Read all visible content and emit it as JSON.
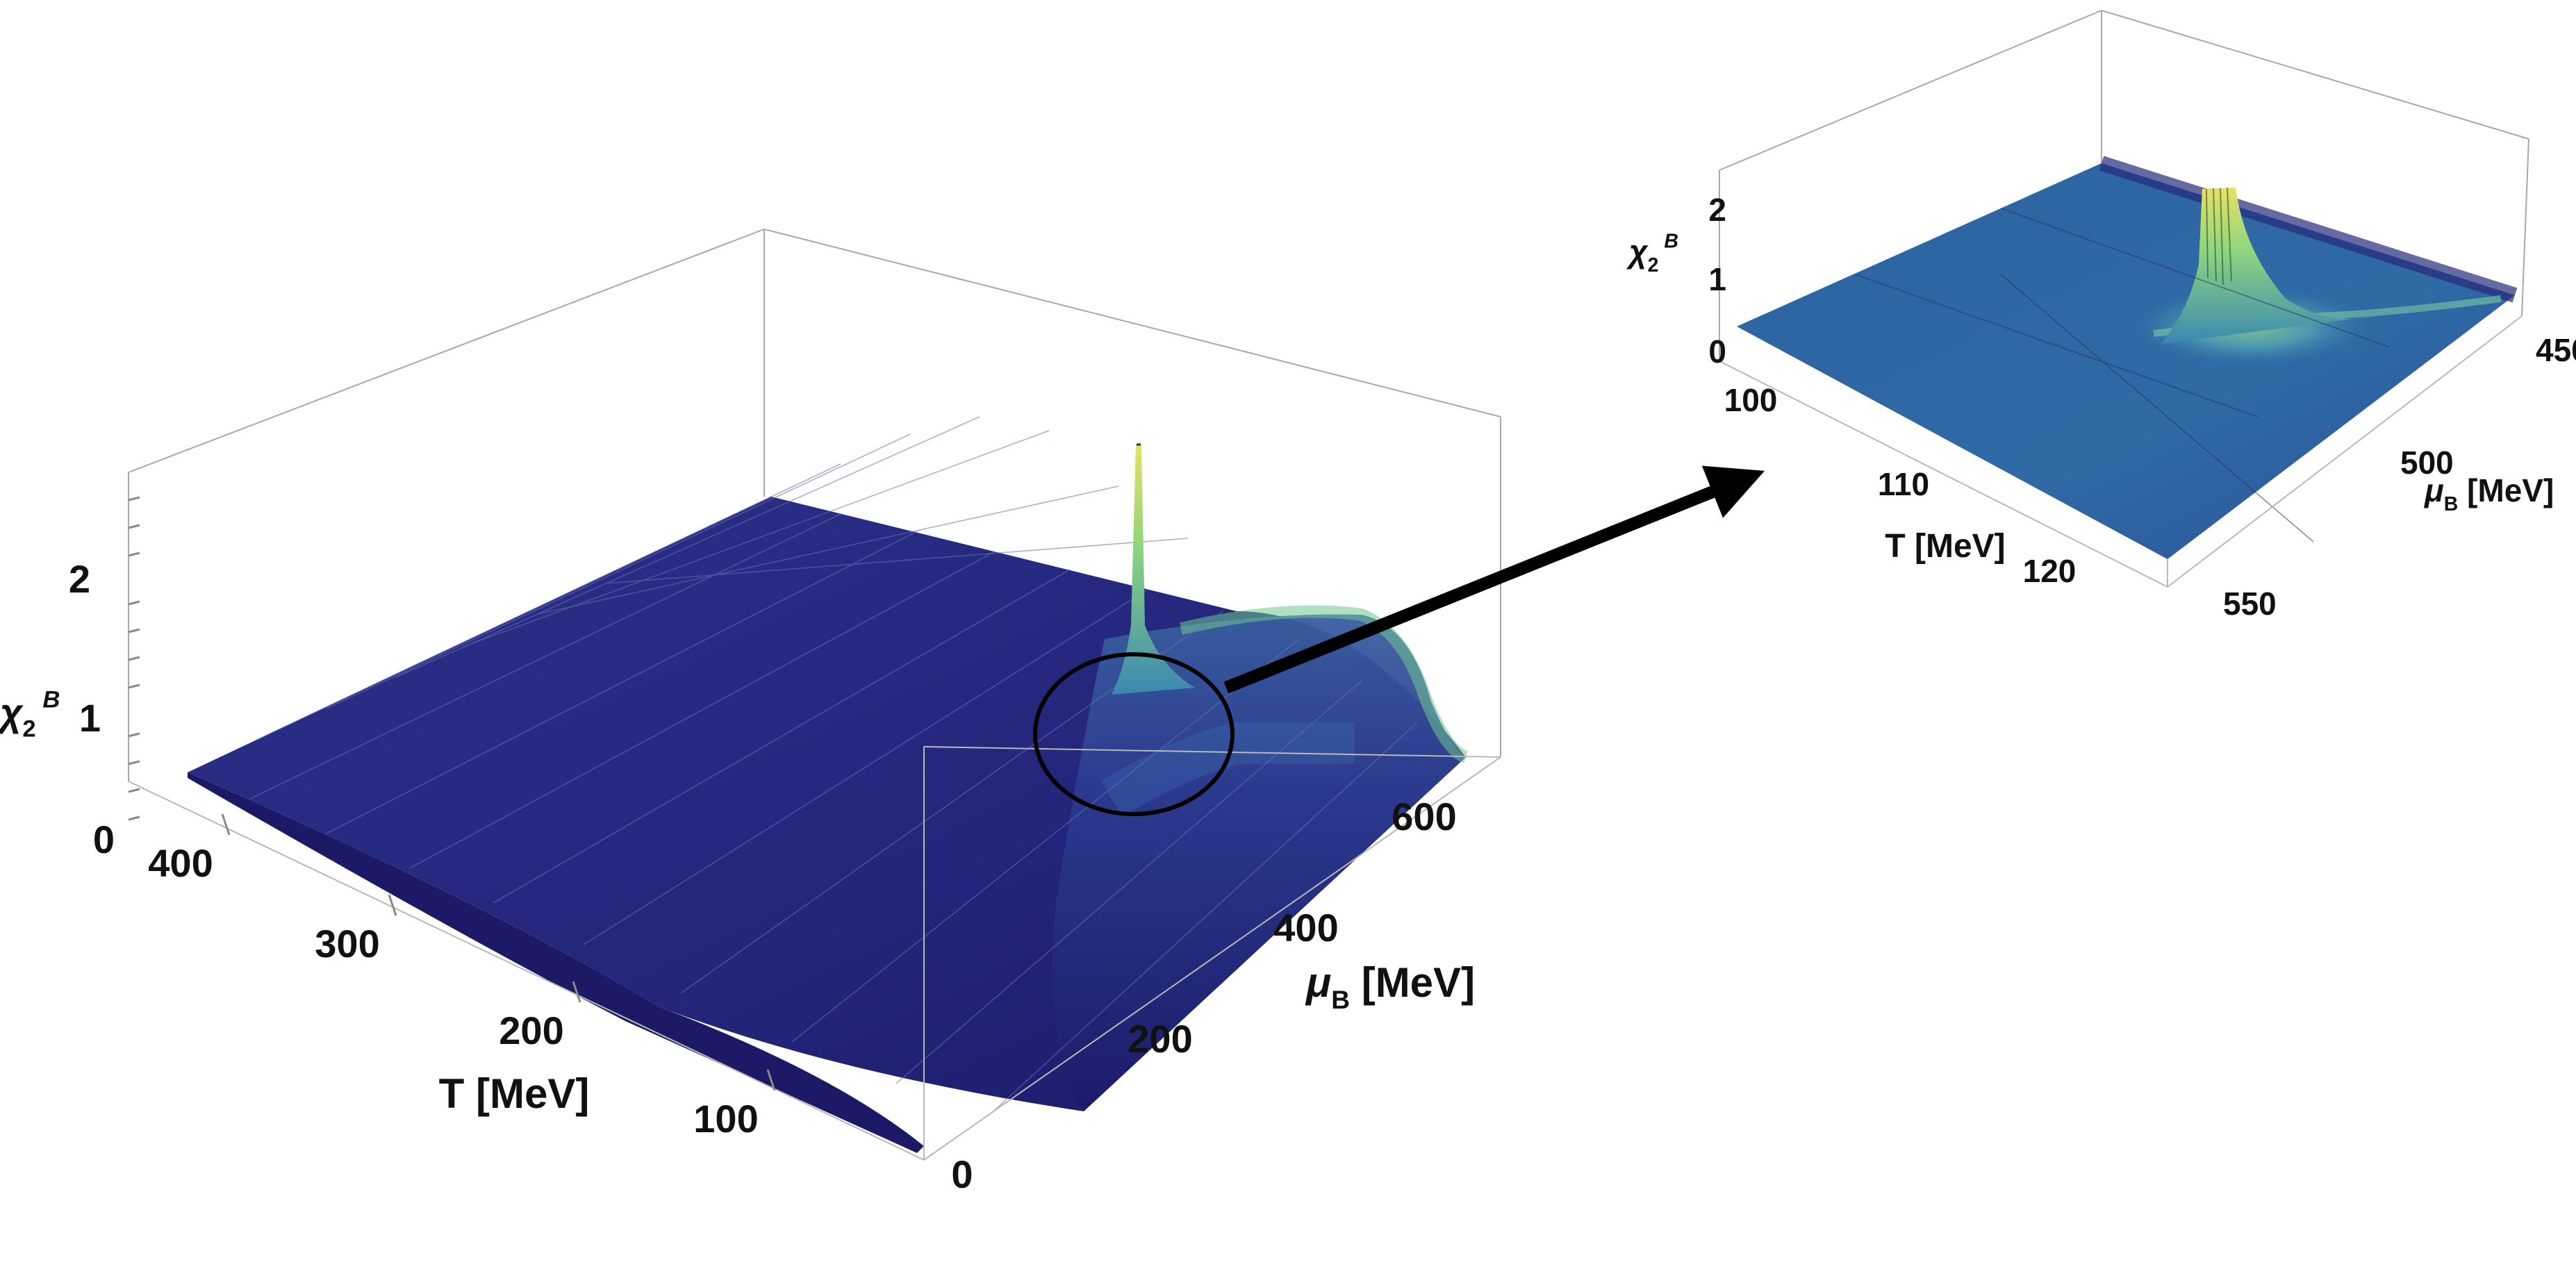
{
  "chart_data": [
    {
      "type": "surface3d",
      "z_label": {
        "base": "χ",
        "sub": "2",
        "sup": "B"
      },
      "x_label": "T [MeV]",
      "y_label": {
        "base": "μ",
        "sub": "B",
        "unit": "[MeV]"
      },
      "x_ticks": [
        "400",
        "300",
        "200",
        "100"
      ],
      "y_ticks": [
        "0",
        "200",
        "400",
        "600"
      ],
      "z_ticks": [
        "0",
        "1",
        "2"
      ],
      "x_range": [
        0,
        420
      ],
      "y_range": [
        0,
        650
      ],
      "z_range": [
        0,
        2.5
      ],
      "critical_point": {
        "T": 115,
        "mu_B": 510,
        "peak": 2.5
      },
      "highlight": "circle around critical region with arrow to zoomed plot"
    },
    {
      "type": "surface3d",
      "z_label": {
        "base": "χ",
        "sub": "2",
        "sup": "B"
      },
      "x_label": "T [MeV]",
      "y_label": {
        "base": "μ",
        "sub": "B",
        "unit": "[MeV]"
      },
      "x_ticks": [
        "100",
        "110",
        "120"
      ],
      "y_ticks": [
        "450",
        "500",
        "550"
      ],
      "z_ticks": [
        "0",
        "1",
        "2"
      ],
      "x_range": [
        95,
        125
      ],
      "y_range": [
        440,
        560
      ],
      "z_range": [
        0,
        2.5
      ],
      "critical_point": {
        "T": 115,
        "mu_B": 510,
        "peak": 2.3
      }
    }
  ],
  "colors": {
    "low": "#2a2e86",
    "mid": "#3a7bb0",
    "high": "#9fdc76",
    "peak": "#e8e063",
    "axis": "#9a9a9a",
    "arrow": "#000000"
  }
}
